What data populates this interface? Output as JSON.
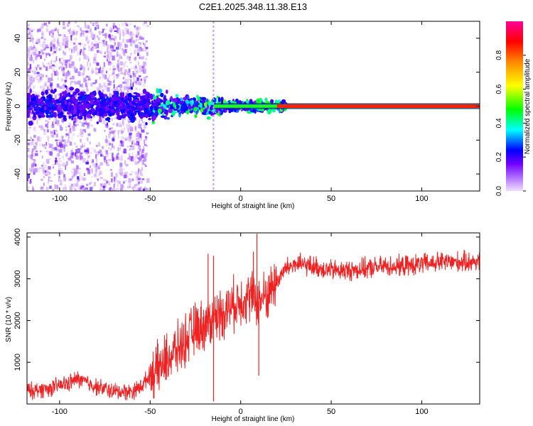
{
  "title": "C2E1.2025.348.11.38.E13",
  "chart_data": [
    {
      "type": "heatmap",
      "xlabel": "Height of straight line (km)",
      "ylabel": "Frequency (Hz)",
      "xlim": [
        -118,
        132
      ],
      "ylim": [
        -50,
        50
      ],
      "xticks": [
        -100,
        -50,
        0,
        50,
        100
      ],
      "yticks": [
        -40,
        -20,
        0,
        20,
        40
      ],
      "colorbar": {
        "label": "Normalized spectral amplitude",
        "range": [
          0,
          1
        ],
        "ticks": [
          "0.0",
          "0.2",
          "0.4",
          "0.6",
          "0.8"
        ],
        "tick_values": [
          0.0,
          0.2,
          0.4,
          0.6,
          0.8
        ],
        "colors": [
          "#f0e0ff",
          "#8800ff",
          "#0000ff",
          "#00ffff",
          "#00ff00",
          "#ffff00",
          "#ff8800",
          "#ff0000",
          "#ff00aa"
        ]
      },
      "band": {
        "frequency_hz": 0,
        "stable_from_km": 25,
        "description": "narrow high-amplitude band near 0 Hz above 25 km; broadband noise below -50 km"
      },
      "noise_region_km": [
        -118,
        -52
      ]
    },
    {
      "type": "line",
      "xlabel": "Height of straight line (km)",
      "ylabel": "SNR (10 * v/v)",
      "xlim": [
        -118,
        132
      ],
      "ylim": [
        0,
        4100
      ],
      "xticks": [
        -100,
        -50,
        0,
        50,
        100
      ],
      "yticks": [
        1000,
        2000,
        3000,
        4000
      ],
      "series": [
        {
          "name": "SNR",
          "color": "#ee2222",
          "x": [
            -118,
            -105,
            -95,
            -90,
            -80,
            -70,
            -60,
            -55,
            -50,
            -45,
            -40,
            -35,
            -30,
            -25,
            -20,
            -15,
            -10,
            -5,
            0,
            5,
            10,
            15,
            20,
            25,
            30,
            40,
            50,
            60,
            70,
            80,
            90,
            100,
            110,
            120,
            132
          ],
          "y": [
            300,
            380,
            500,
            600,
            420,
            300,
            300,
            420,
            700,
            850,
            1100,
            1300,
            1550,
            1800,
            1900,
            2050,
            2200,
            2350,
            2500,
            2600,
            2450,
            2650,
            2950,
            3250,
            3350,
            3300,
            3200,
            3200,
            3250,
            3300,
            3300,
            3350,
            3400,
            3400,
            3420
          ]
        }
      ],
      "spikes": [
        {
          "x": -18,
          "y": 3600
        },
        {
          "x": -15,
          "y": 3550
        },
        {
          "x": 9,
          "y": 4080
        },
        {
          "x": 7,
          "y": 3650
        },
        {
          "x": 10,
          "y": 680
        },
        {
          "x": -15,
          "y": 60
        }
      ]
    }
  ]
}
